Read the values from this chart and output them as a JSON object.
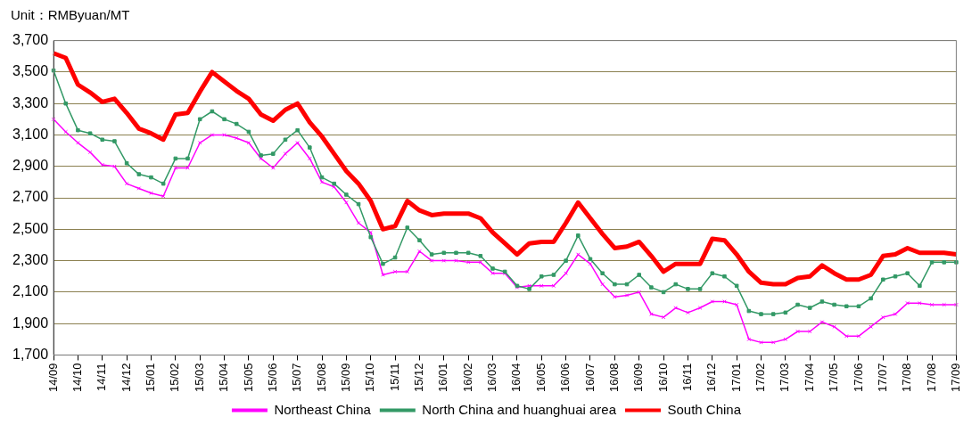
{
  "chart_data": {
    "type": "line",
    "ylabel": "Unit：RMByuan/MT",
    "categories": [
      "14/09",
      null,
      "14/10",
      null,
      "14/11",
      null,
      "14/12",
      null,
      "15/01",
      null,
      "15/02",
      null,
      "15/03",
      null,
      "15/04",
      null,
      "15/05",
      null,
      "15/06",
      null,
      "15/07",
      null,
      "15/08",
      null,
      "15/09",
      null,
      "15/10",
      null,
      "15/11",
      null,
      "15/12",
      null,
      "16/01",
      null,
      "16/02",
      null,
      "16/03",
      null,
      "16/04",
      null,
      "16/05",
      null,
      "16/06",
      null,
      "16/07",
      null,
      "16/08",
      null,
      "16/09",
      null,
      "16/10",
      null,
      "16/11",
      null,
      "16/12",
      null,
      "17/01",
      null,
      "17/02",
      null,
      "17/03",
      null,
      "17/04",
      null,
      "17/05",
      null,
      "17/06",
      null,
      "17/07",
      null,
      "17/08",
      null,
      "17/08",
      null,
      "17/09"
    ],
    "series": [
      {
        "name": "Northeast China",
        "color": "#ff00ff",
        "marker": "cross",
        "values": [
          3200,
          3120,
          3050,
          2990,
          2910,
          2900,
          2790,
          2760,
          2730,
          2710,
          2890,
          2890,
          3050,
          3100,
          3100,
          3080,
          3050,
          2950,
          2890,
          2980,
          3050,
          2950,
          2800,
          2770,
          2670,
          2540,
          2480,
          2210,
          2230,
          2230,
          2360,
          2300,
          2300,
          2300,
          2290,
          2290,
          2220,
          2220,
          2130,
          2140,
          2140,
          2140,
          2220,
          2340,
          2280,
          2150,
          2070,
          2080,
          2100,
          1960,
          1940,
          2000,
          1970,
          2000,
          2040,
          2040,
          2020,
          1800,
          1780,
          1780,
          1800,
          1850,
          1850,
          1910,
          1880,
          1820,
          1820,
          1880,
          1940,
          1960,
          2030,
          2030,
          2020,
          2020,
          2020
        ]
      },
      {
        "name": "North China and huanghuai area",
        "color": "#339966",
        "marker": "square",
        "values": [
          3510,
          3300,
          3130,
          3110,
          3070,
          3060,
          2920,
          2850,
          2830,
          2790,
          2950,
          2950,
          3200,
          3250,
          3200,
          3170,
          3120,
          2970,
          2980,
          3070,
          3130,
          3020,
          2830,
          2790,
          2720,
          2660,
          2450,
          2280,
          2320,
          2510,
          2430,
          2340,
          2350,
          2350,
          2350,
          2330,
          2250,
          2230,
          2140,
          2120,
          2200,
          2210,
          2300,
          2460,
          2310,
          2220,
          2150,
          2150,
          2210,
          2130,
          2100,
          2150,
          2120,
          2120,
          2220,
          2200,
          2140,
          1980,
          1960,
          1960,
          1970,
          2020,
          2000,
          2040,
          2020,
          2010,
          2010,
          2060,
          2180,
          2200,
          2220,
          2140,
          2290,
          2290,
          2290
        ]
      },
      {
        "name": "South China",
        "color": "#ff0000",
        "marker": "none",
        "values": [
          3620,
          3590,
          3420,
          3370,
          3310,
          3330,
          3240,
          3140,
          3110,
          3070,
          3230,
          3240,
          3375,
          3500,
          3440,
          3380,
          3330,
          3230,
          3190,
          3260,
          3300,
          3180,
          3090,
          2980,
          2870,
          2790,
          2680,
          2500,
          2520,
          2680,
          2620,
          2590,
          2600,
          2600,
          2600,
          2570,
          2480,
          2410,
          2340,
          2410,
          2420,
          2420,
          2540,
          2670,
          2570,
          2470,
          2380,
          2390,
          2420,
          2330,
          2230,
          2280,
          2280,
          2280,
          2440,
          2430,
          2340,
          2230,
          2160,
          2150,
          2150,
          2190,
          2200,
          2270,
          2220,
          2180,
          2180,
          2210,
          2330,
          2340,
          2380,
          2350,
          2350,
          2350,
          2340
        ]
      }
    ],
    "ylim": [
      1700,
      3700
    ],
    "yticks": [
      {
        "value": 1700,
        "label": "1,700"
      },
      {
        "value": 1900,
        "label": "1,900"
      },
      {
        "value": 2100,
        "label": "2,100"
      },
      {
        "value": 2300,
        "label": "2,300"
      },
      {
        "value": 2500,
        "label": "2,500"
      },
      {
        "value": 2700,
        "label": "2,700"
      },
      {
        "value": 2900,
        "label": "2,900"
      },
      {
        "value": 3100,
        "label": "3,100"
      },
      {
        "value": 3300,
        "label": "3,300"
      },
      {
        "value": 3500,
        "label": "3,500"
      },
      {
        "value": 3700,
        "label": "3,700"
      }
    ],
    "grid": "y",
    "legend": "bottom",
    "line_style": "solid"
  }
}
